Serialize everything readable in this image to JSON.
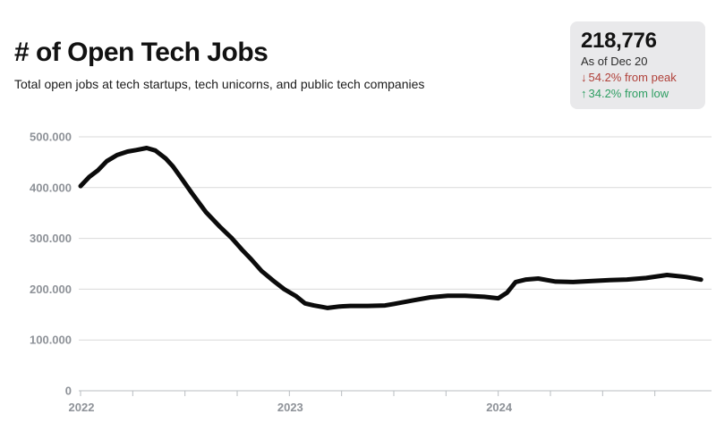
{
  "header": {
    "title": "# of Open Tech Jobs",
    "subtitle": "Total open jobs at tech startups, tech unicorns, and public tech companies"
  },
  "stats": {
    "current_value": "218,776",
    "as_of": "As of Dec 20",
    "down_arrow": "↓",
    "up_arrow": "↑",
    "from_peak": "54.2% from peak",
    "from_low": "34.2% from low",
    "peak_text_color": "#b0413a",
    "low_text_color": "#2e9e62",
    "card_background": "#e9e9eb"
  },
  "chart_data": {
    "type": "line",
    "title": "# of Open Tech Jobs",
    "xlabel": "",
    "ylabel": "",
    "grid": "horizontal",
    "legend": false,
    "line_color": "#0b0b0b",
    "gridline_color": "#d9d9d9",
    "axis_color": "#b9bdc1",
    "label_color": "#8e9298",
    "x_axis": {
      "unit": "months since Jan 2022",
      "range_months": [
        0,
        36.2
      ],
      "year_tick_labels": [
        "2022",
        "2023",
        "2024"
      ],
      "year_tick_positions_months": [
        0,
        12,
        24
      ],
      "minor_tick_every_months": 3,
      "minor_tick_last_month": 33
    },
    "y_axis": {
      "range": [
        0,
        500000
      ],
      "tick_values": [
        0,
        100000,
        200000,
        300000,
        400000,
        500000
      ],
      "tick_labels": [
        "0",
        "100.000",
        "200.000",
        "300.000",
        "400.000",
        "500.000"
      ]
    },
    "series": [
      {
        "name": "Open tech jobs",
        "points": [
          {
            "m": 0,
            "v": 403000
          },
          {
            "m": 0.5,
            "v": 421000
          },
          {
            "m": 1,
            "v": 434000
          },
          {
            "m": 1.5,
            "v": 452000
          },
          {
            "m": 2.1,
            "v": 464000
          },
          {
            "m": 2.7,
            "v": 471000
          },
          {
            "m": 3.2,
            "v": 474000
          },
          {
            "m": 3.8,
            "v": 478000
          },
          {
            "m": 4.3,
            "v": 473000
          },
          {
            "m": 4.9,
            "v": 457000
          },
          {
            "m": 5.3,
            "v": 442000
          },
          {
            "m": 5.7,
            "v": 423000
          },
          {
            "m": 6.4,
            "v": 389000
          },
          {
            "m": 7.2,
            "v": 352000
          },
          {
            "m": 8,
            "v": 323000
          },
          {
            "m": 8.7,
            "v": 300000
          },
          {
            "m": 9.3,
            "v": 277000
          },
          {
            "m": 9.8,
            "v": 259000
          },
          {
            "m": 10.4,
            "v": 236000
          },
          {
            "m": 11.1,
            "v": 216000
          },
          {
            "m": 11.7,
            "v": 200000
          },
          {
            "m": 12.4,
            "v": 186000
          },
          {
            "m": 12.9,
            "v": 172000
          },
          {
            "m": 13.4,
            "v": 168000
          },
          {
            "m": 13.9,
            "v": 165000
          },
          {
            "m": 14.2,
            "v": 163000
          },
          {
            "m": 14.9,
            "v": 166000
          },
          {
            "m": 15.5,
            "v": 167000
          },
          {
            "m": 16.5,
            "v": 167000
          },
          {
            "m": 17.5,
            "v": 168000
          },
          {
            "m": 18,
            "v": 171000
          },
          {
            "m": 19.1,
            "v": 178000
          },
          {
            "m": 20.1,
            "v": 184000
          },
          {
            "m": 21.1,
            "v": 187000
          },
          {
            "m": 22.1,
            "v": 187000
          },
          {
            "m": 23.2,
            "v": 185000
          },
          {
            "m": 24,
            "v": 182000
          },
          {
            "m": 24.5,
            "v": 193000
          },
          {
            "m": 25,
            "v": 214000
          },
          {
            "m": 25.6,
            "v": 219000
          },
          {
            "m": 26.3,
            "v": 221000
          },
          {
            "m": 27.3,
            "v": 215000
          },
          {
            "m": 28.3,
            "v": 214000
          },
          {
            "m": 29.4,
            "v": 216000
          },
          {
            "m": 30.4,
            "v": 218000
          },
          {
            "m": 31.4,
            "v": 219000
          },
          {
            "m": 32.5,
            "v": 222000
          },
          {
            "m": 33.7,
            "v": 228000
          },
          {
            "m": 34.8,
            "v": 224000
          },
          {
            "m": 35.65,
            "v": 218776
          }
        ]
      }
    ]
  }
}
